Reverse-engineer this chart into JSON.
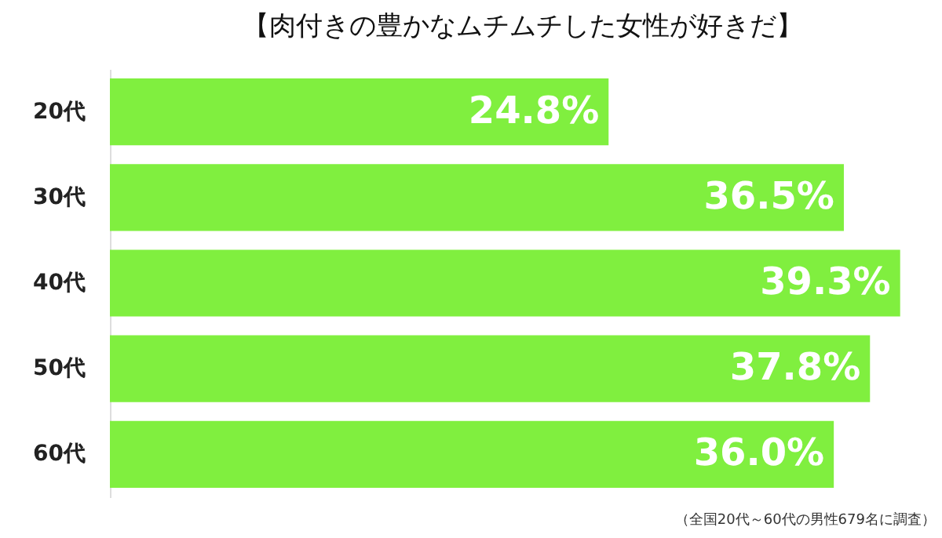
{
  "chart_data": {
    "type": "bar",
    "orientation": "horizontal",
    "title": "【肉付きの豊かなムチムチした女性が好きだ】",
    "categories": [
      "20代",
      "30代",
      "40代",
      "50代",
      "60代"
    ],
    "values": [
      24.8,
      36.5,
      39.3,
      37.8,
      36.0
    ],
    "value_labels": [
      "24.8%",
      "36.5%",
      "39.3%",
      "37.8%",
      "36.0%"
    ],
    "color": "#80ef3f",
    "grid": false,
    "annotations": [
      "（全国20代～60代の男性679名に調査）"
    ]
  }
}
